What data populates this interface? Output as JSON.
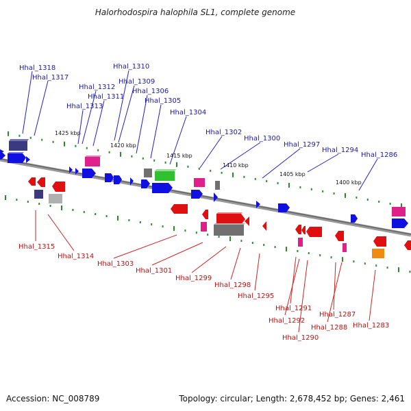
{
  "title": "Halorhodospira halophila SL1, complete genome",
  "footer": {
    "accession": "Accession: NC_008789",
    "summary": "Topology: circular; Length: 2,678,452 bp; Genes: 2,461"
  },
  "scale_labels": [
    "1425 kbp",
    "1420 kbp",
    "1415 kbp",
    "1410 kbp",
    "1405 kbp",
    "1400 kbp"
  ],
  "top_gene_labels": [
    "Hhal_1318",
    "Hhal_1317",
    "Hhal_1310",
    "Hhal_1309",
    "Hhal_1312",
    "Hhal_1306",
    "Hhal_1311",
    "Hhal_1305",
    "Hhal_1313",
    "Hhal_1304",
    "Hhal_1302",
    "Hhal_1300",
    "Hhal_1297",
    "Hhal_1294",
    "Hhal_1286"
  ],
  "bottom_gene_labels": [
    "Hhal_1315",
    "Hhal_1314",
    "Hhal_1303",
    "Hhal_1301",
    "Hhal_1299",
    "Hhal_1298",
    "Hhal_1295",
    "Hhal_1291",
    "Hhal_1292",
    "Hhal_1290",
    "Hhal_1287",
    "Hhal_1288",
    "Hhal_1283"
  ],
  "colors": {
    "forward_strand": "#1010e0",
    "reverse_strand": "#e01010",
    "backbone": "#888888",
    "tick": "#2a8a2a",
    "pink": "#e0208a",
    "green": "#30c030",
    "gray": "#707070",
    "navy": "#3a3a80",
    "orange": "#f08a10"
  }
}
